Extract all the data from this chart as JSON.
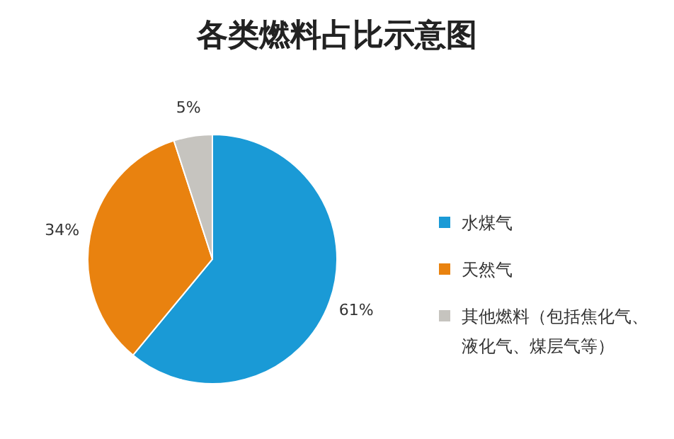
{
  "chart_data": {
    "type": "pie",
    "title": "各类燃料占比示意图",
    "categories": [
      "水煤气",
      "天然气",
      "其他燃料（包括焦化气、液化气、煤层气等）"
    ],
    "values": [
      61,
      34,
      5
    ],
    "colors": [
      "#1a9ad6",
      "#e9820f",
      "#c6c4bf"
    ],
    "value_labels": [
      "61%",
      "34%",
      "5%"
    ],
    "legend": "right"
  }
}
